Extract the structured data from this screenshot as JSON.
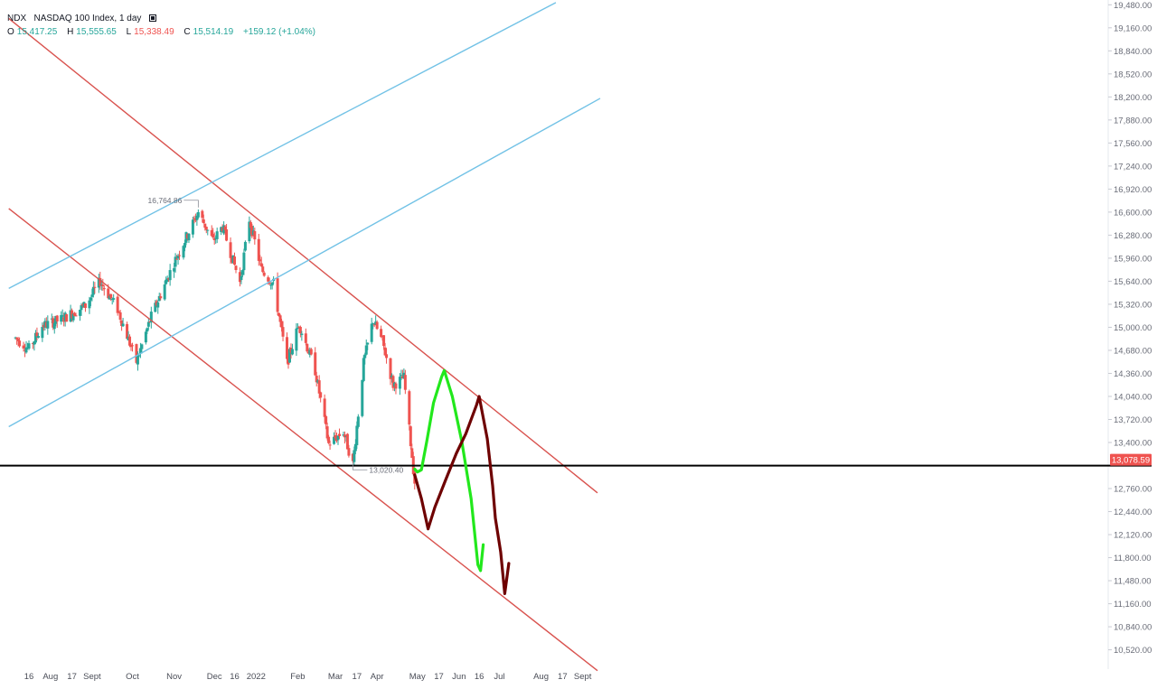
{
  "legend": {
    "symbol": "NDX",
    "name": "NASDAQ 100 Index, 1 day",
    "open_key": "O",
    "open": "15,417.25",
    "high_key": "H",
    "high": "15,555.65",
    "low_key": "L",
    "low": "15,338.49",
    "close_key": "C",
    "close": "15,514.19",
    "change": "+159.12 (+1.04%)",
    "visibility_icon": "eye-box-icon"
  },
  "colors": {
    "up": "#26a69a",
    "down": "#ef5350",
    "channel_red": "#d9534f",
    "channel_blue": "#72c2e6",
    "support_line": "#000000",
    "price_tag": "#ef5350",
    "scenario_green": "#22e81c",
    "scenario_dark": "#6e0000"
  },
  "chart_data": {
    "type": "candlestick",
    "title": "",
    "timeframe": "1 day",
    "y_axis": {
      "position": "right",
      "range": [
        10300,
        19560
      ],
      "ticks": [
        "19,480.00",
        "19,160.00",
        "18,840.00",
        "18,520.00",
        "18,200.00",
        "17,880.00",
        "17,560.00",
        "17,240.00",
        "16,920.00",
        "16,600.00",
        "16,280.00",
        "15,960.00",
        "15,640.00",
        "15,320.00",
        "15,000.00",
        "14,680.00",
        "14,360.00",
        "14,040.00",
        "13,720.00",
        "13,400.00",
        "12,760.00",
        "12,440.00",
        "12,120.00",
        "11,800.00",
        "11,480.00",
        "11,160.00",
        "10,840.00",
        "10,520.00"
      ]
    },
    "x_axis": {
      "ticks": [
        {
          "label": "16",
          "date": "2021-07-16"
        },
        {
          "label": "Aug",
          "date": "2021-08-01"
        },
        {
          "label": "17",
          "date": "2021-08-17"
        },
        {
          "label": "Sept",
          "date": "2021-09-01"
        },
        {
          "label": "Oct",
          "date": "2021-10-01"
        },
        {
          "label": "Nov",
          "date": "2021-11-01"
        },
        {
          "label": "Dec",
          "date": "2021-12-01"
        },
        {
          "label": "16",
          "date": "2021-12-16"
        },
        {
          "label": "2022",
          "date": "2022-01-01"
        },
        {
          "label": "Feb",
          "date": "2022-02-01"
        },
        {
          "label": "Mar",
          "date": "2022-03-01"
        },
        {
          "label": "17",
          "date": "2022-03-17"
        },
        {
          "label": "Apr",
          "date": "2022-04-01"
        },
        {
          "label": "May",
          "date": "2022-05-01"
        },
        {
          "label": "17",
          "date": "2022-05-17"
        },
        {
          "label": "Jun",
          "date": "2022-06-01"
        },
        {
          "label": "16",
          "date": "2022-06-16"
        },
        {
          "label": "Jul",
          "date": "2022-07-01"
        },
        {
          "label": "Aug",
          "date": "2022-08-01"
        },
        {
          "label": "17",
          "date": "2022-08-17"
        },
        {
          "label": "Sept",
          "date": "2022-09-01"
        }
      ]
    },
    "last_price": "13,078.59",
    "horizontal_line": 13078.59,
    "annotations": [
      {
        "label": "16,764.86",
        "date": "2021-11-19",
        "value": 16764.86
      },
      {
        "label": "13,020.40",
        "date": "2022-03-14",
        "value": 13020.4
      }
    ],
    "anchor_points": [
      [
        "2021-07-06",
        14850
      ],
      [
        "2021-07-16",
        14700
      ],
      [
        "2021-07-26",
        15020
      ],
      [
        "2021-08-09",
        15110
      ],
      [
        "2021-08-27",
        15300
      ],
      [
        "2021-09-07",
        15640
      ],
      [
        "2021-09-20",
        15250
      ],
      [
        "2021-10-04",
        14520
      ],
      [
        "2021-10-15",
        15150
      ],
      [
        "2021-11-01",
        15900
      ],
      [
        "2021-11-10",
        16250
      ],
      [
        "2021-11-19",
        16600
      ],
      [
        "2021-11-30",
        16200
      ],
      [
        "2021-12-07",
        16400
      ],
      [
        "2021-12-20",
        15620
      ],
      [
        "2021-12-27",
        16500
      ],
      [
        "2022-01-05",
        15800
      ],
      [
        "2022-01-14",
        15600
      ],
      [
        "2022-01-24",
        14500
      ],
      [
        "2022-02-02",
        15050
      ],
      [
        "2022-02-14",
        14400
      ],
      [
        "2022-02-24",
        13380
      ],
      [
        "2022-03-07",
        13550
      ],
      [
        "2022-03-14",
        13100
      ],
      [
        "2022-03-22",
        14500
      ],
      [
        "2022-03-29",
        15100
      ],
      [
        "2022-04-05",
        14800
      ],
      [
        "2022-04-13",
        14200
      ],
      [
        "2022-04-21",
        14300
      ],
      [
        "2022-04-29",
        12850
      ]
    ],
    "channels": [
      {
        "name": "red-upper",
        "points": [
          [
            "2021-07-01",
            19290
          ],
          [
            "2022-09-12",
            12700
          ]
        ]
      },
      {
        "name": "red-lower",
        "points": [
          [
            "2021-07-01",
            16650
          ],
          [
            "2022-09-12",
            10230
          ]
        ]
      },
      {
        "name": "blue-upper",
        "points": [
          [
            "2021-07-01",
            15540
          ],
          [
            "2022-08-12",
            19510
          ]
        ]
      },
      {
        "name": "blue-lower",
        "points": [
          [
            "2021-07-01",
            13620
          ],
          [
            "2022-09-14",
            18180
          ]
        ]
      }
    ],
    "scenarios": [
      {
        "name": "green-path",
        "points": [
          [
            "2022-04-29",
            13030
          ],
          [
            "2022-05-01",
            12990
          ],
          [
            "2022-05-04",
            13020
          ],
          [
            "2022-05-08",
            13420
          ],
          [
            "2022-05-13",
            13950
          ],
          [
            "2022-05-19",
            14310
          ],
          [
            "2022-05-21",
            14400
          ],
          [
            "2022-05-27",
            14040
          ],
          [
            "2022-06-03",
            13420
          ],
          [
            "2022-06-10",
            12620
          ],
          [
            "2022-06-15",
            11700
          ],
          [
            "2022-06-17",
            11620
          ],
          [
            "2022-06-19",
            11980
          ]
        ]
      },
      {
        "name": "dark-path",
        "points": [
          [
            "2022-04-29",
            12950
          ],
          [
            "2022-05-04",
            12620
          ],
          [
            "2022-05-09",
            12200
          ],
          [
            "2022-05-14",
            12500
          ],
          [
            "2022-05-22",
            12880
          ],
          [
            "2022-05-30",
            13250
          ],
          [
            "2022-06-06",
            13520
          ],
          [
            "2022-06-14",
            13920
          ],
          [
            "2022-06-16",
            14040
          ],
          [
            "2022-06-22",
            13450
          ],
          [
            "2022-06-26",
            12800
          ],
          [
            "2022-06-28",
            12350
          ],
          [
            "2022-07-02",
            11880
          ],
          [
            "2022-07-05",
            11300
          ],
          [
            "2022-07-08",
            11720
          ]
        ]
      }
    ]
  }
}
